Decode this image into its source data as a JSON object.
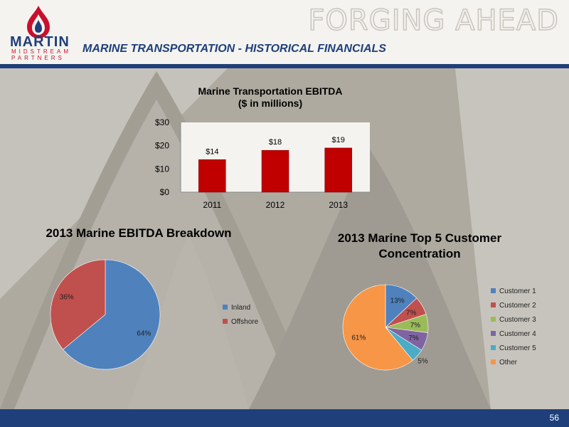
{
  "header": {
    "tagline": "FORGING AHEAD",
    "page_title": "MARINE TRANSPORTATION - HISTORICAL FINANCIALS",
    "logo": {
      "name": "MARTIN",
      "sub1": "MIDSTREAM",
      "sub2": "PARTNERS"
    }
  },
  "footer": {
    "page_number": "56"
  },
  "colors": {
    "navy": "#1f3f7a",
    "bar": "#c00000",
    "inland": "#4f81bd",
    "offshore": "#c0504d"
  },
  "chart_data": [
    {
      "type": "bar",
      "title_line1": "Marine Transportation EBITDA",
      "title_line2": "($ in millions)",
      "categories": [
        "2011",
        "2012",
        "2013"
      ],
      "values": [
        14,
        18,
        19
      ],
      "data_labels": [
        "$14",
        "$18",
        "$19"
      ],
      "ylim": [
        0,
        30
      ],
      "yticks": [
        0,
        10,
        20,
        30
      ],
      "ytick_labels": [
        "$0",
        "$10",
        "$20",
        "$30"
      ],
      "grid": false,
      "legend": "none"
    },
    {
      "type": "pie",
      "title": "2013 Marine EBITDA Breakdown",
      "slices": [
        {
          "label": "Inland",
          "value": 64,
          "display": "64%",
          "color": "#4f81bd"
        },
        {
          "label": "Offshore",
          "value": 36,
          "display": "36%",
          "color": "#c0504d"
        }
      ],
      "legend": "right"
    },
    {
      "type": "pie",
      "title": "2013 Marine Top 5 Customer Concentration",
      "slices": [
        {
          "label": "Customer 1",
          "value": 13,
          "display": "13%",
          "color": "#4f81bd"
        },
        {
          "label": "Customer 2",
          "value": 7,
          "display": "7%",
          "color": "#c0504d"
        },
        {
          "label": "Customer 3",
          "value": 7,
          "display": "7%",
          "color": "#9bbb59"
        },
        {
          "label": "Customer 4",
          "value": 7,
          "display": "7%",
          "color": "#8064a2"
        },
        {
          "label": "Customer 5",
          "value": 5,
          "display": "5%",
          "color": "#4bacc6"
        },
        {
          "label": "Other",
          "value": 61,
          "display": "61%",
          "color": "#f79646"
        }
      ],
      "legend": "right"
    }
  ]
}
